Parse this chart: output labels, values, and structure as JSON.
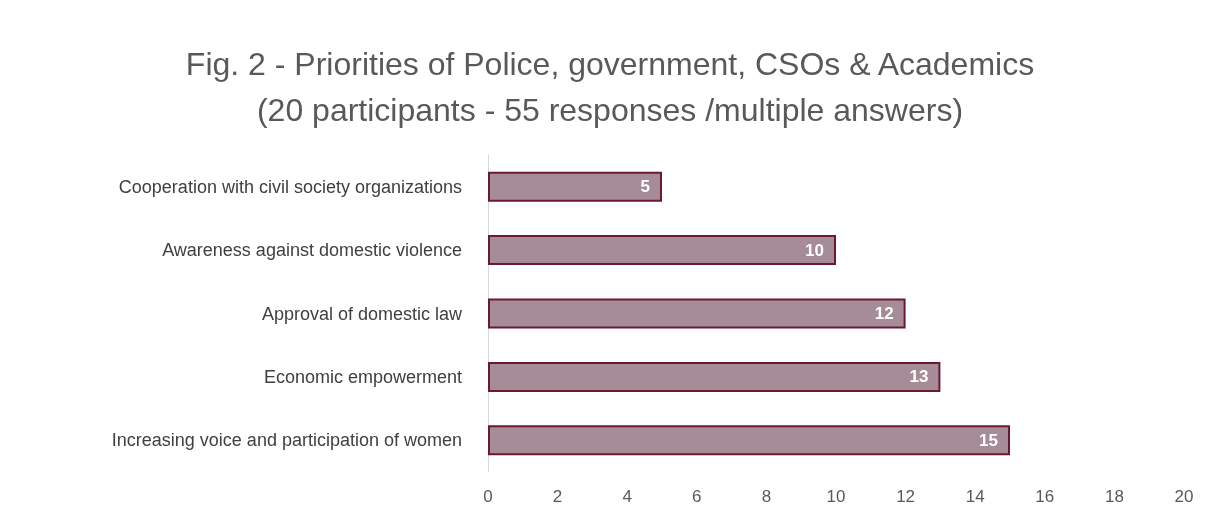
{
  "chart_data": {
    "type": "bar",
    "orientation": "horizontal",
    "title": "Fig. 2 - Priorities of Police, government, CSOs & Academics\n(20 participants - 55 responses /multiple answers)",
    "categories": [
      "Cooperation with civil society organizations",
      "Awareness against domestic violence",
      "Approval of domestic law",
      "Economic empowerment",
      "Increasing voice and participation of women"
    ],
    "values": [
      5,
      10,
      12,
      13,
      15
    ],
    "color": "#a58c97",
    "data_labels": true,
    "xlim": [
      0,
      20
    ],
    "xticks": [
      0,
      2,
      4,
      6,
      8,
      10,
      12,
      14,
      16,
      18,
      20
    ],
    "grid": false
  }
}
